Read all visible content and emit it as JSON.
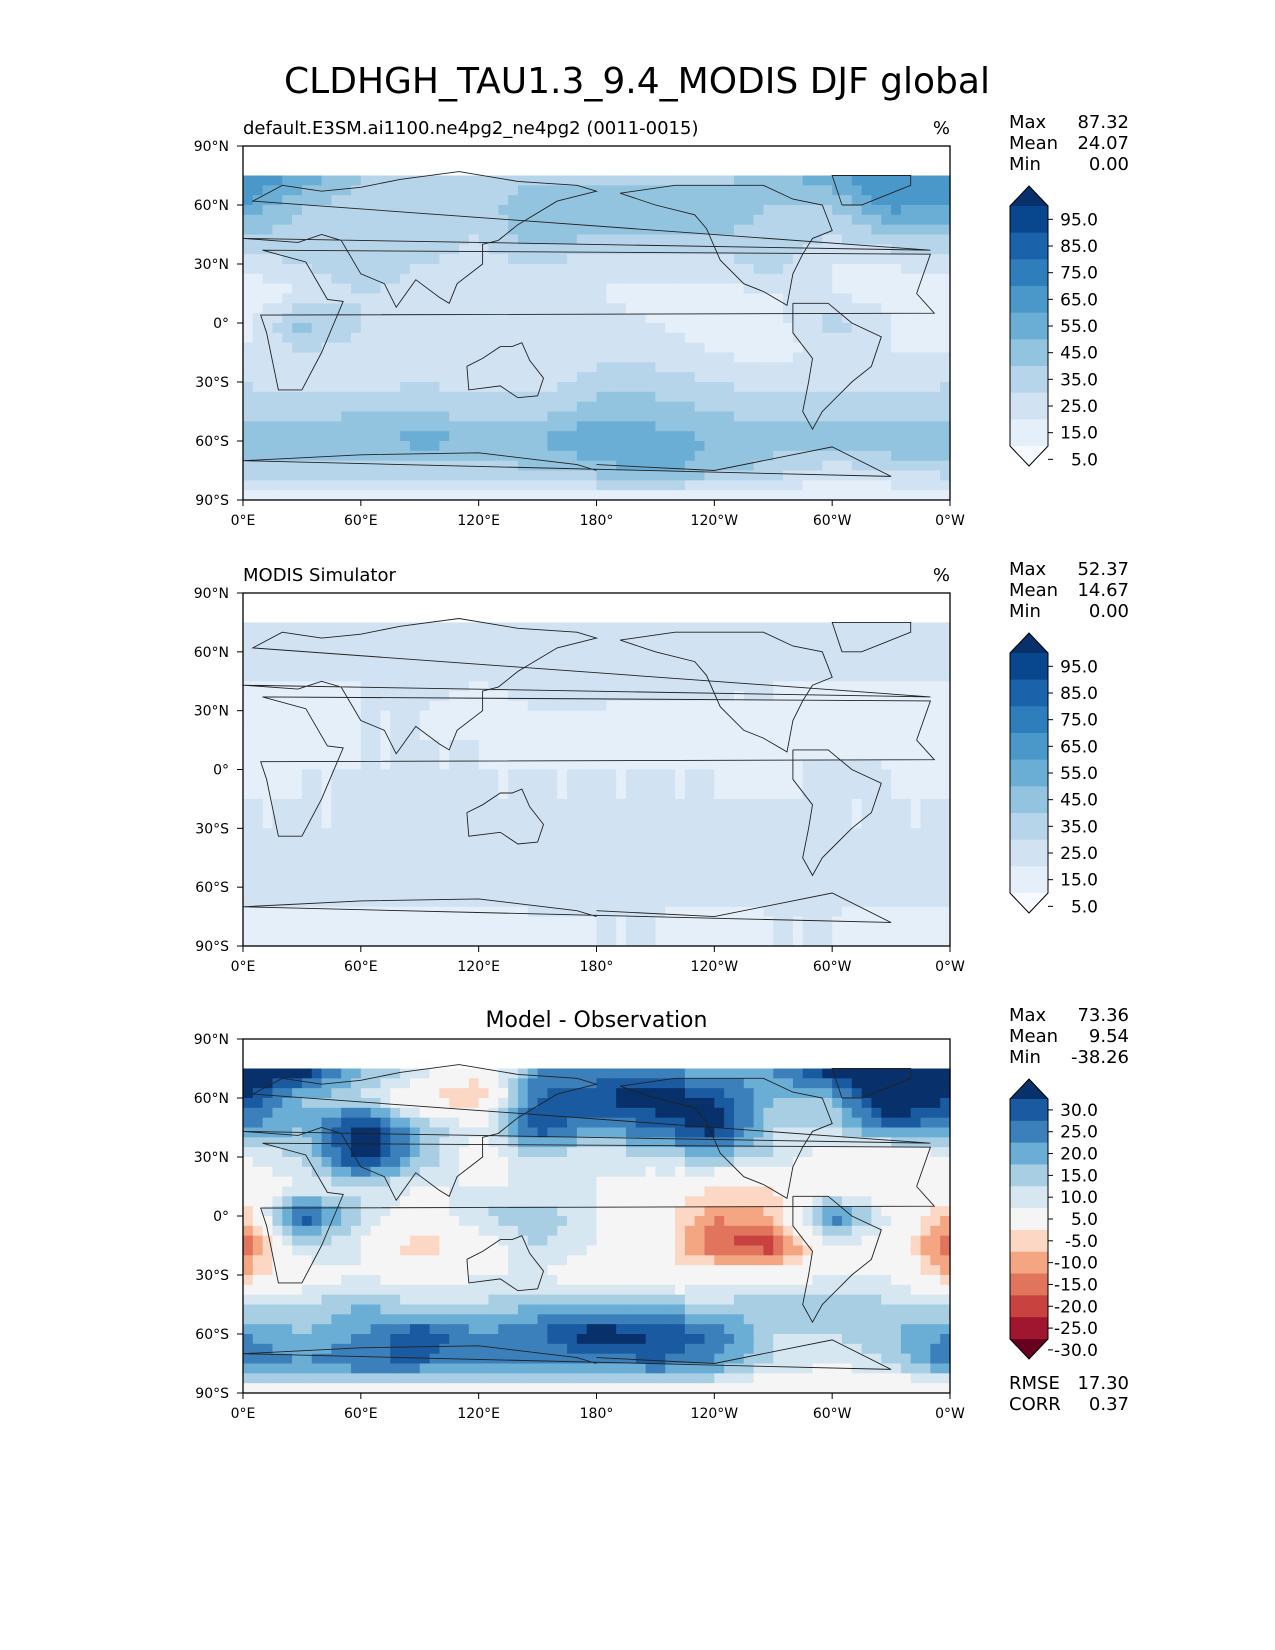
{
  "figure_title": "CLDHGH_TAU1.3_9.4_MODIS DJF global",
  "chart_data": [
    {
      "type": "heatmap",
      "panel": "test",
      "title": "",
      "left_title": "default.E3SM.ai1100.ne4pg2_ne4pg2 (0011-0015)",
      "right_title": "%",
      "x_ticks": [
        "0°E",
        "60°E",
        "120°E",
        "180°",
        "120°W",
        "60°W",
        "0°W"
      ],
      "y_ticks": [
        "90°N",
        "60°N",
        "30°N",
        "0°",
        "30°S",
        "60°S",
        "90°S"
      ],
      "xlim": [
        0,
        360
      ],
      "ylim": [
        -90,
        90
      ],
      "stats": {
        "labels": [
          "Max",
          "Mean",
          "Min"
        ],
        "values": [
          "87.32",
          "24.07",
          "0.00"
        ]
      },
      "colorbar": {
        "labels": [
          "95.0",
          "85.0",
          "75.0",
          "65.0",
          "55.0",
          "45.0",
          "35.0",
          "25.0",
          "15.0",
          "5.0"
        ],
        "colors": [
          "#08306b",
          "#08468e",
          "#1a62aa",
          "#2e7ebc",
          "#4a98c9",
          "#6aaed6",
          "#93c4df",
          "#b7d5ea",
          "#d1e2f3",
          "#e4eff9",
          "#f7fbff"
        ],
        "extend": "both"
      },
      "field": {
        "lats": [
          75,
          60,
          45,
          30,
          15,
          0,
          -15,
          -30,
          -45,
          -60,
          -75,
          -90
        ],
        "lons": [
          0,
          30,
          60,
          90,
          120,
          150,
          180,
          210,
          240,
          270,
          300,
          330,
          360
        ],
        "values": [
          [
            65,
            55,
            35,
            30,
            25,
            30,
            30,
            30,
            30,
            40,
            55,
            65,
            65
          ],
          [
            55,
            35,
            30,
            30,
            30,
            45,
            45,
            45,
            45,
            35,
            35,
            60,
            55
          ],
          [
            35,
            30,
            30,
            35,
            25,
            45,
            35,
            35,
            35,
            30,
            25,
            35,
            35
          ],
          [
            20,
            25,
            35,
            25,
            20,
            25,
            20,
            20,
            20,
            30,
            15,
            15,
            20
          ],
          [
            5,
            15,
            25,
            20,
            20,
            15,
            15,
            10,
            10,
            15,
            15,
            10,
            5
          ],
          [
            10,
            40,
            25,
            15,
            25,
            25,
            20,
            15,
            10,
            10,
            30,
            15,
            10
          ],
          [
            15,
            25,
            20,
            15,
            20,
            20,
            20,
            20,
            15,
            10,
            20,
            15,
            15
          ],
          [
            25,
            20,
            20,
            25,
            20,
            20,
            30,
            30,
            25,
            20,
            20,
            20,
            25
          ],
          [
            30,
            30,
            35,
            35,
            30,
            30,
            40,
            40,
            35,
            30,
            30,
            30,
            30
          ],
          [
            45,
            45,
            40,
            50,
            45,
            45,
            55,
            50,
            45,
            40,
            40,
            45,
            45
          ],
          [
            30,
            30,
            30,
            30,
            30,
            35,
            40,
            50,
            40,
            30,
            20,
            25,
            30
          ],
          [
            5,
            5,
            5,
            5,
            5,
            10,
            10,
            5,
            5,
            5,
            5,
            5,
            5
          ]
        ]
      }
    },
    {
      "type": "heatmap",
      "panel": "reference",
      "title": "",
      "left_title": "MODIS Simulator",
      "right_title": "%",
      "x_ticks": [
        "0°E",
        "60°E",
        "120°E",
        "180°",
        "120°W",
        "60°W",
        "0°W"
      ],
      "y_ticks": [
        "90°N",
        "60°N",
        "30°N",
        "0°",
        "30°S",
        "60°S",
        "90°S"
      ],
      "xlim": [
        0,
        360
      ],
      "ylim": [
        -90,
        90
      ],
      "stats": {
        "labels": [
          "Max",
          "Mean",
          "Min"
        ],
        "values": [
          "52.37",
          "14.67",
          "0.00"
        ]
      },
      "colorbar": {
        "labels": [
          "95.0",
          "85.0",
          "75.0",
          "65.0",
          "55.0",
          "45.0",
          "35.0",
          "25.0",
          "15.0",
          "5.0"
        ],
        "colors": [
          "#08306b",
          "#08468e",
          "#1a62aa",
          "#2e7ebc",
          "#4a98c9",
          "#6aaed6",
          "#93c4df",
          "#b7d5ea",
          "#d1e2f3",
          "#e4eff9",
          "#f7fbff"
        ],
        "extend": "both"
      },
      "field": {
        "lats": [
          75,
          60,
          45,
          30,
          15,
          0,
          -15,
          -30,
          -45,
          -60,
          -75,
          -90
        ],
        "lons": [
          0,
          30,
          60,
          90,
          120,
          150,
          180,
          210,
          240,
          270,
          300,
          330,
          360
        ],
        "values": [
          [
            20,
            15,
            15,
            15,
            15,
            15,
            15,
            15,
            15,
            15,
            15,
            15,
            20
          ],
          [
            20,
            20,
            20,
            20,
            20,
            25,
            20,
            20,
            20,
            20,
            20,
            20,
            20
          ],
          [
            15,
            15,
            15,
            20,
            15,
            20,
            20,
            20,
            20,
            15,
            15,
            15,
            15
          ],
          [
            10,
            10,
            15,
            15,
            10,
            15,
            15,
            10,
            10,
            15,
            10,
            10,
            10
          ],
          [
            5,
            10,
            15,
            15,
            15,
            10,
            10,
            10,
            10,
            15,
            10,
            10,
            5
          ],
          [
            10,
            15,
            15,
            15,
            15,
            15,
            15,
            15,
            15,
            10,
            20,
            15,
            10
          ],
          [
            15,
            15,
            15,
            20,
            15,
            15,
            15,
            15,
            15,
            15,
            15,
            15,
            15
          ],
          [
            15,
            15,
            15,
            20,
            20,
            15,
            20,
            20,
            20,
            20,
            15,
            15,
            15
          ],
          [
            20,
            20,
            20,
            20,
            20,
            20,
            20,
            20,
            20,
            20,
            20,
            20,
            20
          ],
          [
            20,
            20,
            20,
            20,
            20,
            20,
            20,
            20,
            20,
            20,
            20,
            20,
            20
          ],
          [
            10,
            10,
            10,
            10,
            10,
            15,
            15,
            15,
            10,
            15,
            15,
            10,
            10
          ],
          [
            10,
            5,
            10,
            10,
            10,
            10,
            15,
            15,
            15,
            15,
            15,
            10,
            10
          ]
        ]
      }
    },
    {
      "type": "heatmap",
      "panel": "difference",
      "title": "Model - Observation",
      "left_title": "",
      "right_title": "",
      "x_ticks": [
        "0°E",
        "60°E",
        "120°E",
        "180°",
        "120°W",
        "60°W",
        "0°W"
      ],
      "y_ticks": [
        "90°N",
        "60°N",
        "30°N",
        "0°",
        "30°S",
        "60°S",
        "90°S"
      ],
      "xlim": [
        0,
        360
      ],
      "ylim": [
        -90,
        90
      ],
      "stats": {
        "labels": [
          "Max",
          "Mean",
          "Min"
        ],
        "values": [
          "73.36",
          "9.54",
          "-38.26"
        ]
      },
      "extra_stats": {
        "labels": [
          "RMSE",
          "CORR"
        ],
        "values": [
          "17.30",
          "0.37"
        ]
      },
      "colorbar": {
        "labels": [
          "30.0",
          "25.0",
          "20.0",
          "15.0",
          "10.0",
          "5.0",
          "-5.0",
          "-10.0",
          "-15.0",
          "-20.0",
          "-25.0",
          "-30.0"
        ],
        "colors": [
          "#08306b",
          "#1a5aa0",
          "#3b80bb",
          "#6aaed6",
          "#a8cee4",
          "#d6e7f1",
          "#f5f5f5",
          "#fbd7c4",
          "#f4a582",
          "#e0745d",
          "#c8423f",
          "#a0162e",
          "#67001f"
        ],
        "extend": "both"
      },
      "field": {
        "lats": [
          75,
          60,
          45,
          30,
          15,
          0,
          -15,
          -30,
          -45,
          -60,
          -75,
          -90
        ],
        "lons": [
          0,
          30,
          60,
          90,
          120,
          150,
          180,
          210,
          240,
          270,
          300,
          330,
          360
        ],
        "values": [
          [
            40,
            35,
            15,
            10,
            -5,
            20,
            20,
            20,
            15,
            20,
            35,
            45,
            40
          ],
          [
            30,
            15,
            10,
            -5,
            -10,
            25,
            30,
            35,
            30,
            15,
            15,
            40,
            30
          ],
          [
            20,
            15,
            35,
            15,
            5,
            30,
            20,
            25,
            35,
            10,
            10,
            25,
            20
          ],
          [
            5,
            10,
            35,
            15,
            0,
            10,
            5,
            10,
            15,
            10,
            0,
            -5,
            5
          ],
          [
            0,
            5,
            10,
            5,
            5,
            5,
            5,
            0,
            -5,
            -5,
            0,
            -5,
            0
          ],
          [
            -10,
            30,
            10,
            0,
            10,
            15,
            5,
            0,
            -15,
            -10,
            25,
            5,
            -10
          ],
          [
            -20,
            10,
            5,
            -10,
            0,
            10,
            5,
            0,
            -20,
            -25,
            5,
            0,
            -20
          ],
          [
            -10,
            0,
            5,
            0,
            5,
            5,
            0,
            -5,
            0,
            0,
            5,
            5,
            -10
          ],
          [
            10,
            10,
            15,
            10,
            10,
            15,
            15,
            15,
            10,
            15,
            15,
            10,
            10
          ],
          [
            20,
            15,
            20,
            30,
            20,
            25,
            35,
            30,
            25,
            10,
            10,
            15,
            20
          ],
          [
            25,
            20,
            25,
            25,
            20,
            20,
            20,
            25,
            20,
            10,
            5,
            10,
            25
          ],
          [
            -5,
            0,
            0,
            -5,
            0,
            0,
            0,
            0,
            0,
            -5,
            -5,
            -5,
            -5
          ]
        ]
      }
    }
  ]
}
